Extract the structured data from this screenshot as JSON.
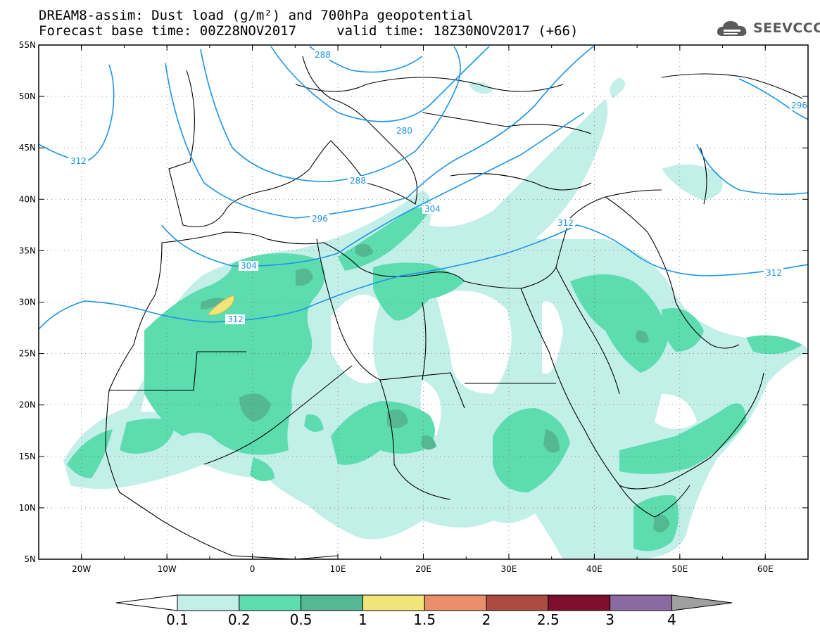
{
  "header": {
    "title_line1": "DREAM8-assim: Dust load (g/m²) and 700hPa geopotential",
    "title_line2": "Forecast base time: 00Z28NOV2017     valid time: 18Z30NOV2017 (+66)",
    "logo_text": "SEEVCCC",
    "logo_icon": "cloud-icon"
  },
  "map": {
    "lon_range": [
      -25,
      65
    ],
    "lat_range": [
      5,
      55
    ],
    "lat_labels": [
      "55N",
      "50N",
      "45N",
      "40N",
      "35N",
      "30N",
      "25N",
      "20N",
      "15N",
      "10N",
      "5N"
    ],
    "lon_labels": [
      "20W",
      "10W",
      "0",
      "10E",
      "20E",
      "30E",
      "40E",
      "50E",
      "60E"
    ],
    "contour_color": "#1c94e6",
    "geopotential_labels": [
      "288",
      "280",
      "288",
      "296",
      "304",
      "304",
      "312",
      "312",
      "312",
      "312",
      "296"
    ]
  },
  "colorbar": {
    "labels": [
      "0.1",
      "0.2",
      "0.5",
      "1",
      "1.5",
      "2",
      "2.5",
      "3",
      "4"
    ],
    "colors": [
      "#c3efe9",
      "#5ddcb0",
      "#55b894",
      "#f1e57a",
      "#ea8f6b",
      "#aa4c42",
      "#7e0f2f",
      "#8a6ba1"
    ],
    "extend_low_color": "#ffffff",
    "extend_high_color": "#a0a0a0"
  }
}
